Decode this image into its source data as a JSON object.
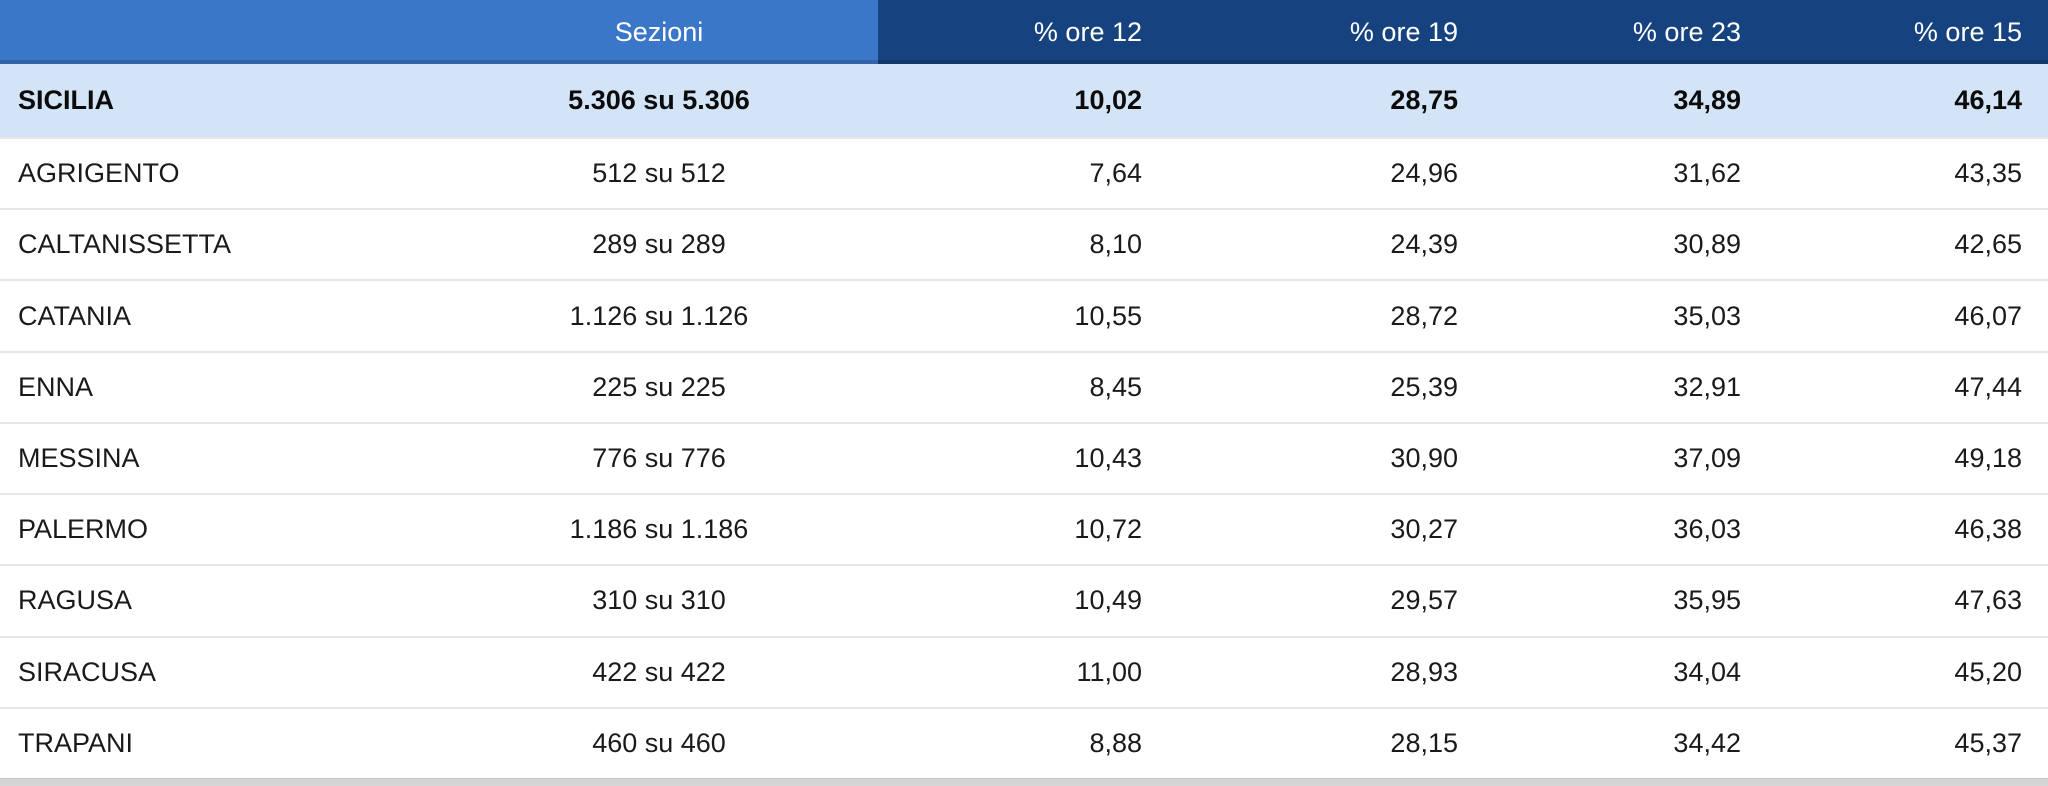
{
  "colors": {
    "header_light_blue": "#3b77c8",
    "header_navy": "#164380",
    "header_text": "#ffffff",
    "summary_row_bg": "#d4e4f7",
    "row_bg": "#ffffff",
    "separator": "#e7e7e7",
    "bottom_bar": "#d5d5d5",
    "body_text": "#1a1a1a"
  },
  "table": {
    "columns": {
      "territory": "",
      "sezioni": "Sezioni",
      "ore12": "% ore 12",
      "ore19": "% ore 19",
      "ore23": "% ore 23",
      "ore15": "% ore 15"
    },
    "summary_row": {
      "territory": "SICILIA",
      "sezioni": "5.306 su 5.306",
      "ore12": "10,02",
      "ore19": "28,75",
      "ore23": "34,89",
      "ore15": "46,14"
    },
    "rows": [
      {
        "territory": "AGRIGENTO",
        "sezioni": "512 su 512",
        "ore12": "7,64",
        "ore19": "24,96",
        "ore23": "31,62",
        "ore15": "43,35"
      },
      {
        "territory": "CALTANISSETTA",
        "sezioni": "289 su 289",
        "ore12": "8,10",
        "ore19": "24,39",
        "ore23": "30,89",
        "ore15": "42,65"
      },
      {
        "territory": "CATANIA",
        "sezioni": "1.126 su 1.126",
        "ore12": "10,55",
        "ore19": "28,72",
        "ore23": "35,03",
        "ore15": "46,07"
      },
      {
        "territory": "ENNA",
        "sezioni": "225 su 225",
        "ore12": "8,45",
        "ore19": "25,39",
        "ore23": "32,91",
        "ore15": "47,44"
      },
      {
        "territory": "MESSINA",
        "sezioni": "776 su 776",
        "ore12": "10,43",
        "ore19": "30,90",
        "ore23": "37,09",
        "ore15": "49,18"
      },
      {
        "territory": "PALERMO",
        "sezioni": "1.186 su 1.186",
        "ore12": "10,72",
        "ore19": "30,27",
        "ore23": "36,03",
        "ore15": "46,38"
      },
      {
        "territory": "RAGUSA",
        "sezioni": "310 su 310",
        "ore12": "10,49",
        "ore19": "29,57",
        "ore23": "35,95",
        "ore15": "47,63"
      },
      {
        "territory": "SIRACUSA",
        "sezioni": "422 su 422",
        "ore12": "11,00",
        "ore19": "28,93",
        "ore23": "34,04",
        "ore15": "45,20"
      },
      {
        "territory": "TRAPANI",
        "sezioni": "460 su 460",
        "ore12": "8,88",
        "ore19": "28,15",
        "ore23": "34,42",
        "ore15": "45,37"
      }
    ]
  }
}
